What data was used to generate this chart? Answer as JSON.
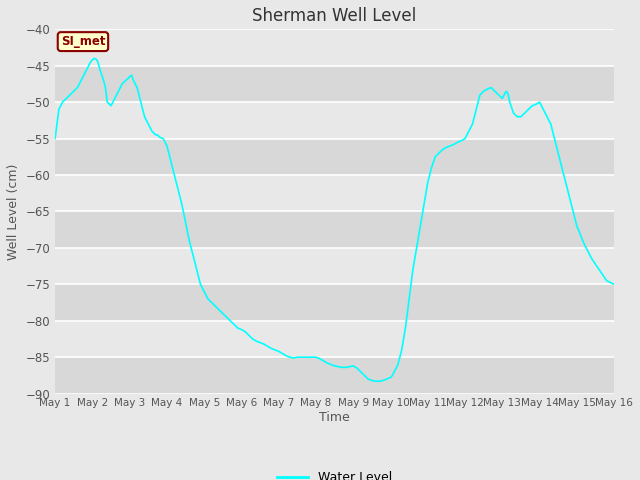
{
  "title": "Sherman Well Level",
  "xlabel": "Time",
  "ylabel": "Well Level (cm)",
  "ylim": [
    -90,
    -40
  ],
  "yticks": [
    -90,
    -85,
    -80,
    -75,
    -70,
    -65,
    -60,
    -55,
    -50,
    -45,
    -40
  ],
  "line_color": "#00FFFF",
  "fig_bg_color": "#e8e8e8",
  "plot_bg_color": "#dcdcdc",
  "legend_label": "Water Level",
  "annotation_text": "SI_met",
  "annotation_bg": "#ffffcc",
  "annotation_border": "#8B0000",
  "annotation_text_color": "#8B0000",
  "x_tick_labels": [
    "May 1",
    "May 2",
    "May 3",
    "May 4",
    "May 5",
    "May 6",
    "May 7",
    "May 8",
    "May 9",
    "May 10",
    "May 11",
    "May 12",
    "May 13",
    "May 14",
    "May 15",
    "May 16"
  ],
  "x_tick_positions": [
    1,
    2,
    3,
    4,
    5,
    6,
    7,
    8,
    9,
    10,
    11,
    12,
    13,
    14,
    15,
    16
  ],
  "data_x": [
    1.0,
    1.05,
    1.1,
    1.2,
    1.3,
    1.4,
    1.5,
    1.6,
    1.7,
    1.8,
    1.85,
    1.9,
    1.95,
    2.0,
    2.05,
    2.1,
    2.15,
    2.2,
    2.3,
    2.35,
    2.4,
    2.5,
    2.6,
    2.65,
    2.7,
    2.75,
    2.8,
    2.9,
    2.95,
    3.0,
    3.05,
    3.1,
    3.2,
    3.3,
    3.4,
    3.5,
    3.6,
    3.7,
    3.75,
    3.8,
    3.9,
    4.0,
    4.1,
    4.2,
    4.3,
    4.4,
    4.5,
    4.6,
    4.7,
    4.8,
    4.9,
    5.0,
    5.1,
    5.2,
    5.3,
    5.4,
    5.5,
    5.6,
    5.7,
    5.8,
    5.9,
    6.0,
    6.1,
    6.2,
    6.3,
    6.4,
    6.5,
    6.6,
    6.7,
    6.8,
    6.9,
    7.0,
    7.1,
    7.2,
    7.3,
    7.4,
    7.5,
    7.6,
    7.7,
    7.8,
    7.9,
    8.0,
    8.1,
    8.2,
    8.3,
    8.4,
    8.5,
    8.6,
    8.7,
    8.8,
    8.9,
    9.0,
    9.1,
    9.2,
    9.3,
    9.4,
    9.5,
    9.6,
    9.7,
    9.8,
    9.9,
    10.0,
    10.05,
    10.1,
    10.2,
    10.3,
    10.4,
    10.5,
    10.6,
    10.7,
    10.8,
    10.9,
    11.0,
    11.1,
    11.2,
    11.3,
    11.4,
    11.5,
    11.6,
    11.7,
    11.8,
    11.9,
    12.0,
    12.05,
    12.1,
    12.15,
    12.2,
    12.25,
    12.3,
    12.35,
    12.4,
    12.5,
    12.6,
    12.7,
    12.8,
    12.9,
    13.0,
    13.05,
    13.1,
    13.15,
    13.2,
    13.3,
    13.4,
    13.5,
    13.6,
    13.7,
    13.8,
    13.9,
    14.0,
    14.1,
    14.2,
    14.3,
    14.4,
    14.5,
    14.6,
    14.7,
    14.8,
    14.9,
    15.0,
    15.2,
    15.4,
    15.6,
    15.8,
    16.0
  ],
  "data_y": [
    -55,
    -53,
    -51,
    -50,
    -49.5,
    -49,
    -48.5,
    -48,
    -47,
    -46,
    -45.5,
    -45,
    -44.5,
    -44.2,
    -44,
    -44.1,
    -44.5,
    -45.5,
    -47,
    -48,
    -50,
    -50.5,
    -49.5,
    -49,
    -48.5,
    -48,
    -47.5,
    -47,
    -46.8,
    -46.5,
    -46.3,
    -47,
    -48,
    -50,
    -52,
    -53,
    -54,
    -54.5,
    -54.5,
    -54.8,
    -55,
    -56,
    -58,
    -60,
    -62,
    -64,
    -66.5,
    -69,
    -71,
    -73,
    -75,
    -76,
    -77,
    -77.5,
    -78,
    -78.5,
    -79,
    -79.5,
    -80,
    -80.5,
    -81,
    -81.2,
    -81.5,
    -82,
    -82.5,
    -82.8,
    -83,
    -83.2,
    -83.5,
    -83.8,
    -84,
    -84.2,
    -84.5,
    -84.8,
    -85,
    -85.1,
    -85,
    -85,
    -85,
    -85,
    -85,
    -85,
    -85.2,
    -85.5,
    -85.8,
    -86,
    -86.2,
    -86.3,
    -86.4,
    -86.4,
    -86.3,
    -86.2,
    -86.5,
    -87,
    -87.5,
    -88,
    -88.2,
    -88.3,
    -88.3,
    -88.2,
    -88,
    -87.8,
    -87.5,
    -87,
    -86,
    -84,
    -81,
    -77,
    -73,
    -70,
    -67,
    -64,
    -61,
    -59,
    -57.5,
    -57,
    -56.5,
    -56.2,
    -56,
    -55.8,
    -55.5,
    -55.3,
    -55,
    -54.5,
    -54,
    -53.5,
    -53,
    -52,
    -51,
    -50,
    -49,
    -48.5,
    -48.2,
    -48,
    -48.5,
    -49,
    -49.5,
    -49,
    -48.5,
    -48.8,
    -50,
    -51.5,
    -52,
    -52,
    -51.5,
    -51,
    -50.5,
    -50.3,
    -50,
    -51,
    -52,
    -53,
    -55,
    -57,
    -59,
    -61,
    -63,
    -65,
    -67,
    -69.5,
    -71.5,
    -73,
    -74.5,
    -75
  ]
}
